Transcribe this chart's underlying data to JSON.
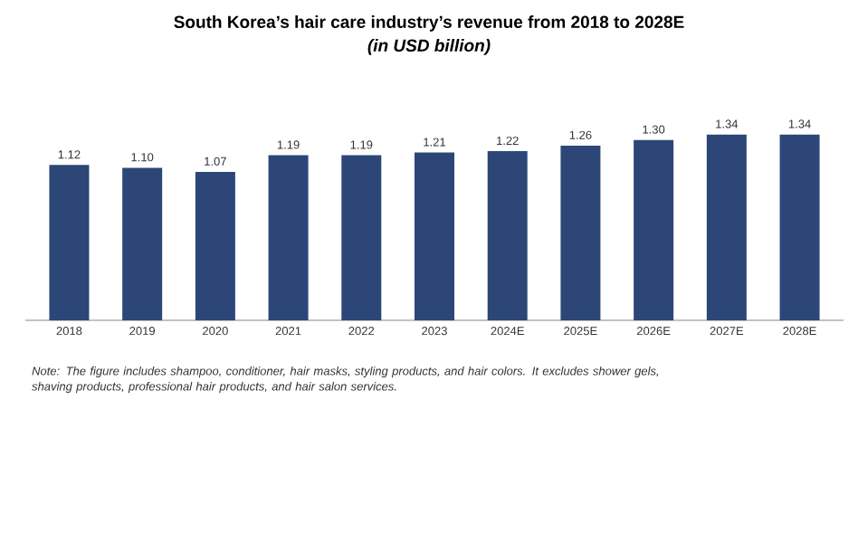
{
  "chart_data": {
    "type": "bar",
    "title": "South Korea’s hair care industry’s revenue from 2018 to 2028E",
    "subtitle": "(in USD billion)",
    "categories": [
      "2018",
      "2019",
      "2020",
      "2021",
      "2022",
      "2023",
      "2024E",
      "2025E",
      "2026E",
      "2027E",
      "2028E"
    ],
    "values": [
      1.12,
      1.1,
      1.07,
      1.19,
      1.19,
      1.21,
      1.22,
      1.26,
      1.3,
      1.34,
      1.34
    ],
    "value_labels": [
      "1.12",
      "1.10",
      "1.07",
      "1.19",
      "1.19",
      "1.21",
      "1.22",
      "1.26",
      "1.30",
      "1.34",
      "1.34"
    ],
    "color": "#2b4677",
    "annotations": [
      "Note: The figure includes shampoo, conditioner, hair masks, styling products, and hair colors. It excludes shower gels, shaving products, professional hair products, and hair salon services."
    ]
  }
}
